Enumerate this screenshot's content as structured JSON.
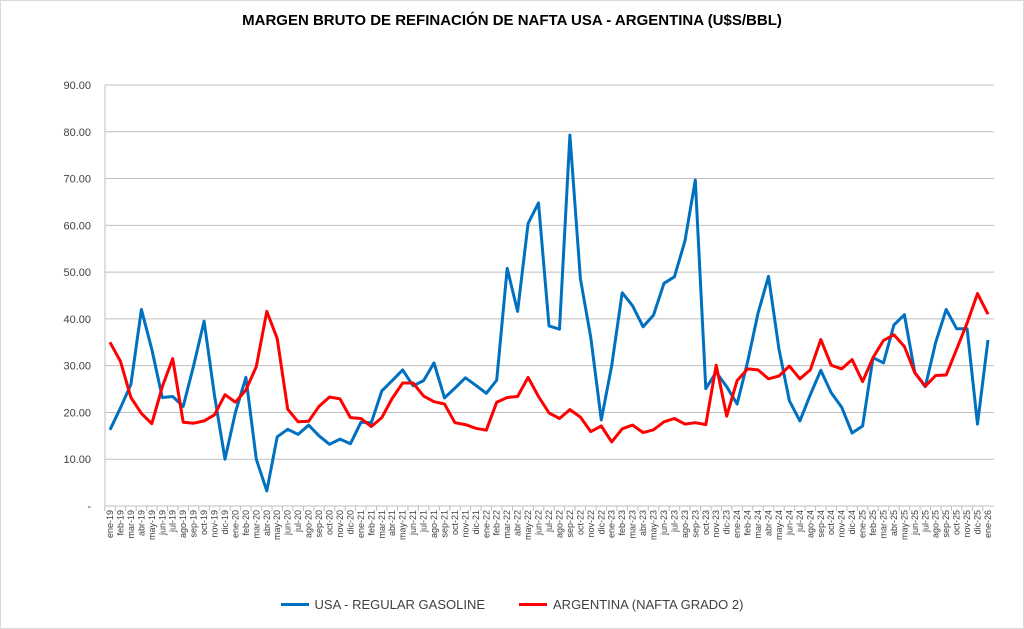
{
  "chart_data": {
    "type": "line",
    "title": "MARGEN BRUTO DE REFINACIÓN DE NAFTA USA - ARGENTINA (U$S/BBL)",
    "xlabel": "",
    "ylabel": "",
    "ylim": [
      0,
      90
    ],
    "yticks": [
      0,
      10,
      20,
      30,
      40,
      50,
      60,
      70,
      80,
      90
    ],
    "ytick_labels": [
      "-",
      "10.00",
      "20.00",
      "30.00",
      "40.00",
      "50.00",
      "60.00",
      "70.00",
      "80.00",
      "90.00"
    ],
    "grid": true,
    "legend_position": "bottom",
    "x": [
      "ene-19",
      "feb-19",
      "mar-19",
      "abr-19",
      "may-19",
      "jun-19",
      "jul-19",
      "ago-19",
      "sep-19",
      "oct-19",
      "nov-19",
      "dic-19",
      "ene-20",
      "feb-20",
      "mar-20",
      "abr-20",
      "may-20",
      "jun-20",
      "jul-20",
      "ago-20",
      "sep-20",
      "oct-20",
      "nov-20",
      "dic-20",
      "ene-21",
      "feb-21",
      "mar-21",
      "abr-21",
      "may-21",
      "jun-21",
      "jul-21",
      "ago-21",
      "sep-21",
      "oct-21",
      "nov-21",
      "dic-21",
      "ene-22",
      "feb-22",
      "mar-22",
      "abr-22",
      "may-22",
      "jun-22",
      "jul-22",
      "ago-22",
      "sep-22",
      "oct-22",
      "nov-22",
      "dic-22",
      "ene-23",
      "feb-23",
      "mar-23",
      "abr-23",
      "may-23",
      "jun-23",
      "jul-23",
      "ago-23",
      "sep-23",
      "oct-23",
      "nov-23",
      "dic-23",
      "ene-24",
      "feb-24",
      "mar-24",
      "abr-24",
      "may-24",
      "jun-24",
      "jul-24",
      "ago-24",
      "sep-24",
      "oct-24",
      "nov-24",
      "dic-24",
      "ene-25",
      "feb-25",
      "mar-25",
      "abr-25",
      "may-25",
      "jun-25",
      "jul-25",
      "ago-25",
      "sep-25",
      "oct-25",
      "nov-25",
      "dic-25",
      "ene-26"
    ],
    "series": [
      {
        "name": "USA - REGULAR GASOLINE",
        "color": "#0070c0",
        "values": [
          16.3,
          21,
          26,
          42,
          33.5,
          23.2,
          23.4,
          21.3,
          30,
          39.5,
          23.6,
          10,
          20,
          27.5,
          10,
          3.2,
          14.8,
          16.4,
          15.3,
          17.3,
          15,
          13.2,
          14.3,
          13.3,
          17.9,
          17.8,
          24.6,
          26.8,
          29.1,
          25.7,
          26.8,
          30.6,
          23.1,
          25.2,
          27.4,
          25.8,
          24.1,
          26.9,
          50.8,
          41.6,
          60.4,
          64.8,
          38.5,
          37.8,
          79.3,
          48.6,
          36,
          18.4,
          30,
          45.6,
          42.8,
          38.3,
          40.8,
          47.6,
          49,
          56.6,
          69.7,
          25.1,
          28.6,
          25.5,
          21.8,
          30.8,
          41.2,
          49.1,
          33.5,
          22.5,
          18.2,
          23.8,
          29,
          24.2,
          21.1,
          15.6,
          17.1,
          31.7,
          30.6,
          38.7,
          40.9,
          28.5,
          25.5,
          35,
          42,
          37.9,
          37.9,
          17.5,
          35.5
        ]
      },
      {
        "name": "ARGENTINA (NAFTA GRADO 2)",
        "color": "#ff0000",
        "values": [
          35,
          30.9,
          23.2,
          19.8,
          17.6,
          25.5,
          31.5,
          17.9,
          17.7,
          18.2,
          19.5,
          23.8,
          22.2,
          24.8,
          29.8,
          41.6,
          35.8,
          20.7,
          18,
          18.1,
          21.3,
          23.3,
          22.9,
          18.9,
          18.7,
          17,
          18.9,
          23,
          26.3,
          26.3,
          23.5,
          22.3,
          21.8,
          17.8,
          17.4,
          16.6,
          16.2,
          22.2,
          23.2,
          23.4,
          27.5,
          23.4,
          19.9,
          18.7,
          20.6,
          19,
          15.9,
          17.1,
          13.7,
          16.5,
          17.3,
          15.7,
          16.3,
          18,
          18.7,
          17.5,
          17.8,
          17.4,
          30.1,
          19.2,
          26.8,
          29.3,
          29.1,
          27.2,
          27.8,
          29.9,
          27.2,
          29.1,
          35.6,
          30.1,
          29.3,
          31.3,
          26.6,
          31.7,
          35.4,
          36.6,
          34.1,
          28.5,
          25.6,
          27.9,
          28,
          33.5,
          39.1,
          45.4,
          41
        ]
      }
    ]
  }
}
